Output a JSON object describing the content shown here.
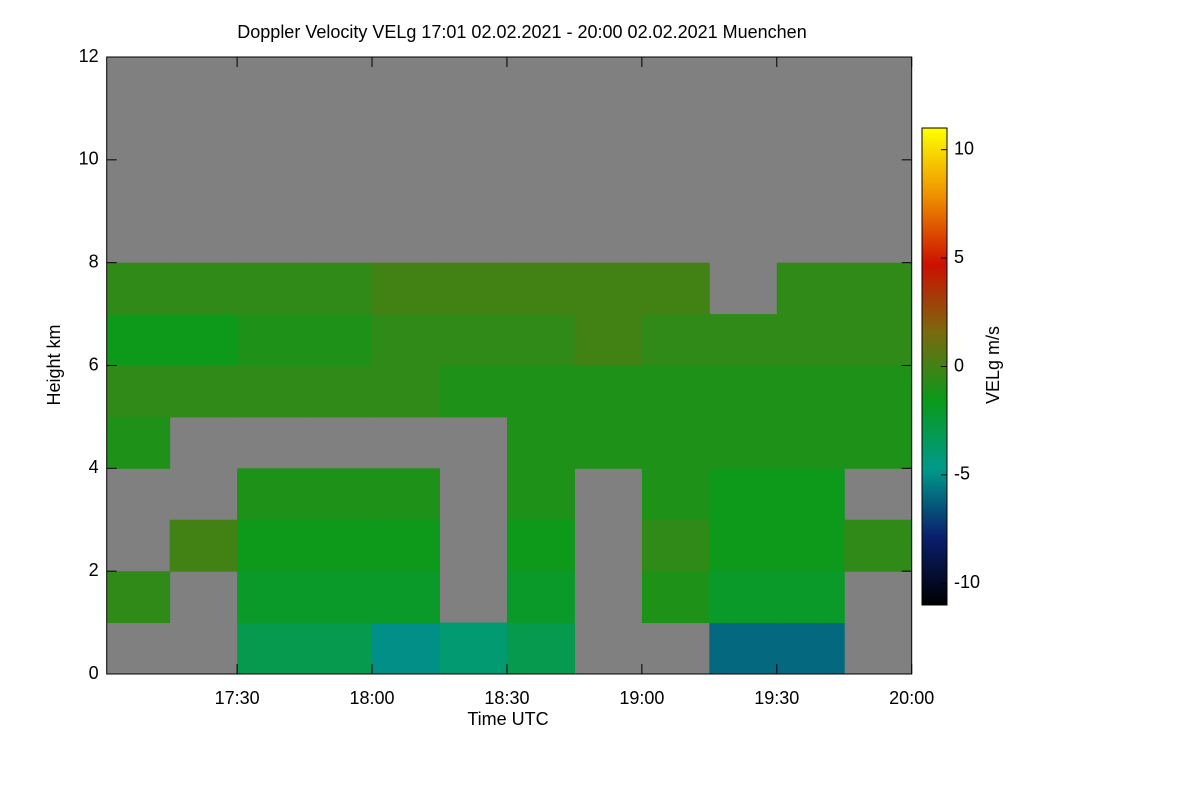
{
  "chart_data": {
    "type": "heatmap",
    "title": "Doppler Velocity VELg   17:01 02.02.2021 - 20:00 02.02.2021 Muenchen",
    "x_label": "Time UTC",
    "y_label": "Height km",
    "colorbar_label": "VELg m/s",
    "xlim": [
      17.0167,
      20.0
    ],
    "xticks": [
      {
        "value": 17.5,
        "label": "17:30"
      },
      {
        "value": 18.0,
        "label": "18:00"
      },
      {
        "value": 18.5,
        "label": "18:30"
      },
      {
        "value": 19.0,
        "label": "19:00"
      },
      {
        "value": 19.5,
        "label": "19:30"
      },
      {
        "value": 20.0,
        "label": "20:00"
      }
    ],
    "ylim": [
      0,
      12
    ],
    "yticks": [
      0,
      2,
      4,
      6,
      8,
      10,
      12
    ],
    "zlim": [
      -11,
      11
    ],
    "zticks": [
      -10,
      -5,
      0,
      5,
      10
    ],
    "background": "#808080",
    "colorscale": [
      "#000000",
      "#0a1f6e",
      "#009a8a",
      "#0a9a1a",
      "#7a6a10",
      "#cc1000",
      "#ee9000",
      "#ffff00"
    ],
    "x_bins": [
      17.0,
      17.25,
      17.5,
      17.75,
      18.0,
      18.25,
      18.5,
      18.75,
      19.0,
      19.25,
      19.5,
      19.75,
      20.0
    ],
    "y_bins": [
      0,
      1,
      2,
      3,
      4,
      5,
      6,
      7,
      8,
      9,
      10,
      11,
      12
    ],
    "z": [
      [
        null,
        null,
        -3,
        -3,
        -5,
        -4,
        -3,
        null,
        null,
        -6,
        -6,
        null
      ],
      [
        -0.5,
        null,
        -2,
        -2,
        -2,
        null,
        -2,
        null,
        -1,
        -2,
        -2,
        null
      ],
      [
        null,
        0,
        -1.5,
        -1.5,
        -1.5,
        null,
        -1.5,
        null,
        -0.5,
        -1.5,
        -1.5,
        -0.5
      ],
      [
        null,
        null,
        -1,
        -1,
        -1,
        null,
        -1,
        null,
        -1,
        -1.5,
        -1.5,
        null
      ],
      [
        -1,
        null,
        null,
        null,
        null,
        null,
        -1,
        -1,
        -1,
        -1,
        -1,
        -1
      ],
      [
        -0.5,
        -0.5,
        -0.5,
        -0.5,
        -0.5,
        -1,
        -1,
        -1,
        -1,
        -1,
        -1,
        -1
      ],
      [
        -1.5,
        -1.5,
        -1,
        -1,
        -0.5,
        -0.5,
        -0.5,
        0,
        -0.5,
        -0.5,
        -0.5,
        -0.5
      ],
      [
        -0.5,
        -0.5,
        -0.5,
        -0.5,
        0,
        0,
        0,
        0,
        0,
        null,
        -0.5,
        -0.5
      ],
      [
        null,
        null,
        null,
        null,
        null,
        null,
        null,
        null,
        null,
        null,
        null,
        null
      ],
      [
        null,
        null,
        null,
        null,
        null,
        null,
        null,
        null,
        null,
        null,
        null,
        null
      ],
      [
        null,
        null,
        null,
        null,
        null,
        null,
        null,
        null,
        null,
        null,
        null,
        null
      ],
      [
        null,
        null,
        null,
        null,
        null,
        null,
        null,
        null,
        null,
        null,
        null,
        null
      ]
    ]
  }
}
